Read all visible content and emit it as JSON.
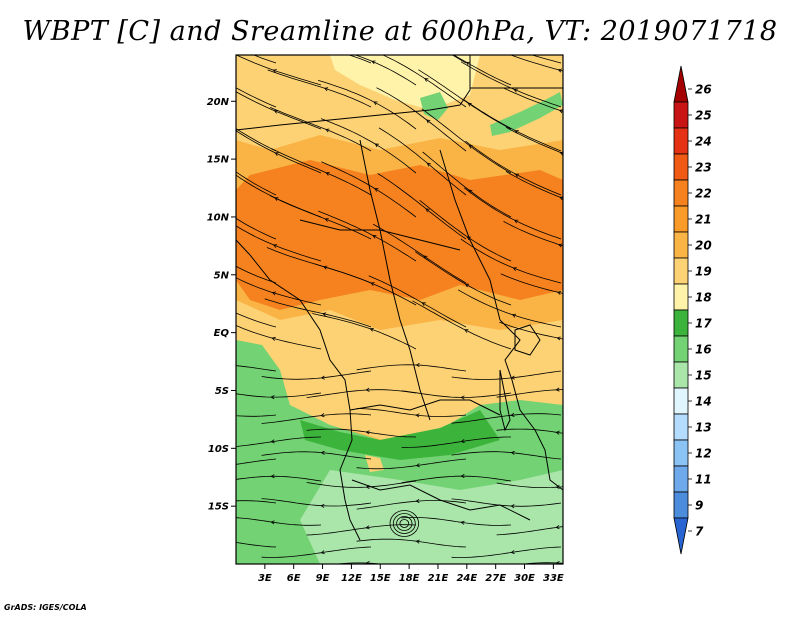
{
  "title": "WBPT [C] and Sreamline at 600hPa, VT: 2019071718",
  "credit": "GrADS: IGES/COLA",
  "map": {
    "lat_range": [
      -20,
      24
    ],
    "lon_range": [
      0,
      34
    ],
    "y_ticks": [
      "20N",
      "15N",
      "10N",
      "5N",
      "EQ",
      "5S",
      "10S",
      "15S"
    ],
    "y_tick_values": [
      20,
      15,
      10,
      5,
      0,
      -5,
      -10,
      -15
    ],
    "x_ticks": [
      "3E",
      "6E",
      "9E",
      "12E",
      "15E",
      "18E",
      "21E",
      "24E",
      "27E",
      "30E",
      "33E"
    ],
    "x_tick_values": [
      3,
      6,
      9,
      12,
      15,
      18,
      21,
      24,
      27,
      30,
      33
    ]
  },
  "colorbar": {
    "labels": [
      "26",
      "25",
      "24",
      "23",
      "22",
      "21",
      "20",
      "19",
      "18",
      "17",
      "16",
      "15",
      "14",
      "13",
      "12",
      "11",
      "9",
      "7"
    ],
    "colors": [
      "#a50000",
      "#c81414",
      "#e63214",
      "#f05a14",
      "#f5821e",
      "#fa9a28",
      "#fab446",
      "#fcd274",
      "#fff3aa",
      "#3cb43c",
      "#73d273",
      "#aae6aa",
      "#e1f5ff",
      "#b4dcff",
      "#8cc3f5",
      "#6eaaeb",
      "#4b8cdc",
      "#2864d2"
    ]
  }
}
